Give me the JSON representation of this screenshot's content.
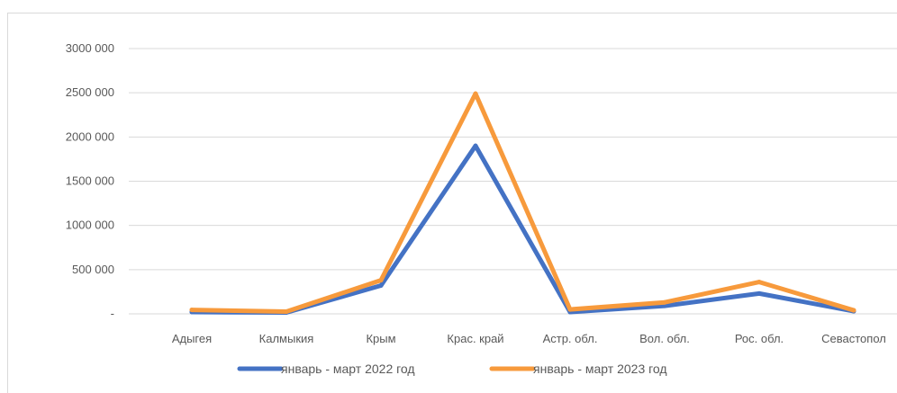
{
  "chart_data": {
    "type": "line",
    "categories": [
      "Адыгея",
      "Калмыкия",
      "Крым",
      "Крас. край",
      "Астр. обл.",
      "Вол. обл.",
      "Рос. обл.",
      "Севастопол"
    ],
    "series": [
      {
        "name": "январь - март 2022 год",
        "color": "#4472c4",
        "values": [
          20000,
          15000,
          320000,
          1900000,
          20000,
          90000,
          230000,
          30000
        ]
      },
      {
        "name": "январь - март 2023 год",
        "color": "#f79a3c",
        "values": [
          45000,
          25000,
          380000,
          2490000,
          50000,
          130000,
          360000,
          40000
        ]
      }
    ],
    "y_ticks": [
      {
        "value": 0,
        "label": "-"
      },
      {
        "value": 500000,
        "label": "500 000"
      },
      {
        "value": 1000000,
        "label": "1000 000"
      },
      {
        "value": 1500000,
        "label": "1500 000"
      },
      {
        "value": 2000000,
        "label": "2000 000"
      },
      {
        "value": 2500000,
        "label": "2500 000"
      },
      {
        "value": 3000000,
        "label": "3000 000"
      }
    ],
    "ylim": [
      0,
      3000000
    ],
    "grid": true,
    "legend": "bottom"
  }
}
